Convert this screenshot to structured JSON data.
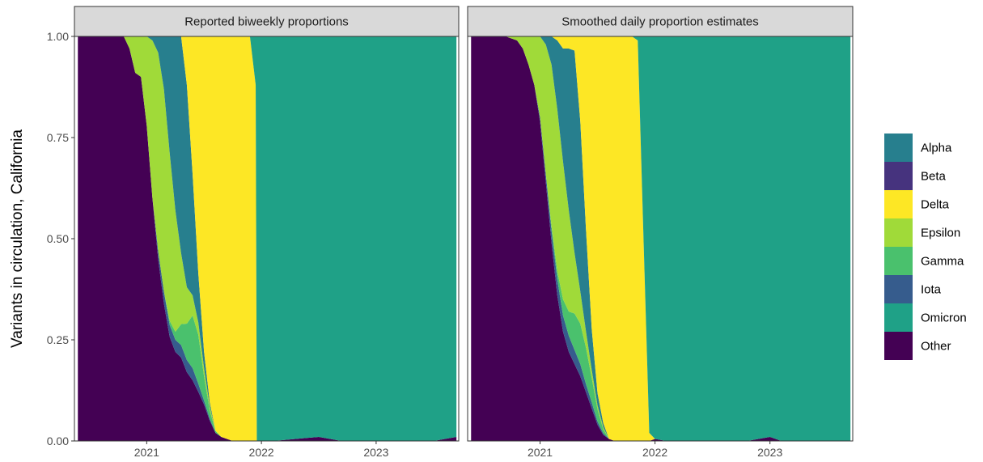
{
  "chart_data": {
    "type": "area",
    "ylabel": "Variants in circulation, California",
    "ylim": [
      0,
      1
    ],
    "y_ticks": [
      "0.00",
      "0.25",
      "0.50",
      "0.75",
      "1.00"
    ],
    "x_ticks": [
      "2021",
      "2022",
      "2023"
    ],
    "x_tick_values": [
      2021.0,
      2022.0,
      2023.0
    ],
    "xlim": [
      2020.37,
      2023.72
    ],
    "legend_position": "right",
    "legend_order": [
      "Alpha",
      "Beta",
      "Delta",
      "Epsilon",
      "Gamma",
      "Iota",
      "Omicron",
      "Other"
    ],
    "colors": {
      "Alpha": "#277f8e",
      "Beta": "#46337e",
      "Delta": "#fde725",
      "Epsilon": "#a0da39",
      "Gamma": "#4ac16d",
      "Iota": "#365c8d",
      "Omicron": "#1fa187",
      "Other": "#440154"
    },
    "stack_order": [
      "Other",
      "Beta",
      "Iota",
      "Gamma",
      "Epsilon",
      "Alpha",
      "Delta",
      "Omicron"
    ],
    "panels": [
      {
        "title": "Reported biweekly proportions",
        "x": [
          2020.4,
          2020.7,
          2020.8,
          2020.85,
          2020.9,
          2020.95,
          2021.0,
          2021.05,
          2021.1,
          2021.15,
          2021.2,
          2021.25,
          2021.3,
          2021.35,
          2021.4,
          2021.45,
          2021.5,
          2021.55,
          2021.6,
          2021.65,
          2021.7,
          2021.75,
          2021.8,
          2021.85,
          2021.9,
          2021.95,
          2021.96,
          2022.0,
          2022.1,
          2022.5,
          2022.7,
          2023.0,
          2023.5,
          2023.7
        ],
        "series": [
          {
            "name": "Other",
            "values": [
              1.0,
              1.0,
              1.0,
              0.97,
              0.91,
              0.9,
              0.78,
              0.6,
              0.45,
              0.34,
              0.26,
              0.22,
              0.2,
              0.17,
              0.15,
              0.12,
              0.09,
              0.05,
              0.02,
              0.01,
              0.005,
              0,
              0,
              0,
              0,
              0,
              0,
              0,
              0,
              0.01,
              0,
              0,
              0,
              0.01
            ]
          },
          {
            "name": "Beta",
            "values": [
              0,
              0,
              0,
              0,
              0,
              0,
              0,
              0,
              0,
              0,
              0,
              0,
              0,
              0,
              0,
              0,
              0,
              0,
              0,
              0,
              0,
              0,
              0,
              0,
              0,
              0,
              0,
              0,
              0,
              0,
              0,
              0,
              0,
              0
            ]
          },
          {
            "name": "Iota",
            "values": [
              0,
              0,
              0,
              0,
              0,
              0,
              0,
              0,
              0.02,
              0.03,
              0.03,
              0.03,
              0.03,
              0.03,
              0.03,
              0.02,
              0.01,
              0.005,
              0,
              0,
              0,
              0,
              0,
              0,
              0,
              0,
              0,
              0,
              0,
              0,
              0,
              0,
              0,
              0
            ]
          },
          {
            "name": "Gamma",
            "values": [
              0,
              0,
              0,
              0,
              0,
              0,
              0,
              0,
              0,
              0,
              0.01,
              0.02,
              0.05,
              0.09,
              0.13,
              0.12,
              0.06,
              0.02,
              0.005,
              0,
              0,
              0,
              0,
              0,
              0,
              0,
              0,
              0,
              0,
              0,
              0,
              0,
              0,
              0
            ]
          },
          {
            "name": "Epsilon",
            "values": [
              0,
              0,
              0,
              0.03,
              0.09,
              0.1,
              0.22,
              0.39,
              0.49,
              0.5,
              0.42,
              0.3,
              0.17,
              0.09,
              0.05,
              0.03,
              0.02,
              0.01,
              0,
              0,
              0,
              0,
              0,
              0,
              0,
              0,
              0,
              0,
              0,
              0,
              0,
              0,
              0,
              0
            ]
          },
          {
            "name": "Alpha",
            "values": [
              0,
              0,
              0,
              0,
              0,
              0,
              0,
              0.01,
              0.04,
              0.13,
              0.29,
              0.43,
              0.52,
              0.5,
              0.3,
              0.12,
              0.04,
              0.01,
              0,
              0,
              0,
              0,
              0,
              0,
              0,
              0,
              0,
              0,
              0,
              0,
              0,
              0,
              0,
              0
            ]
          },
          {
            "name": "Delta",
            "values": [
              0,
              0,
              0,
              0,
              0,
              0,
              0,
              0,
              0,
              0,
              0,
              0,
              0,
              0.12,
              0.34,
              0.58,
              0.78,
              0.905,
              0.97,
              0.99,
              0.995,
              1.0,
              1.0,
              1.0,
              1.0,
              0.88,
              0.0,
              0,
              0,
              0,
              0,
              0,
              0,
              0
            ]
          },
          {
            "name": "Omicron",
            "values": [
              0,
              0,
              0,
              0,
              0,
              0,
              0,
              0,
              0,
              0,
              0,
              0,
              0,
              0,
              0,
              0,
              0,
              0,
              0,
              0,
              0,
              0,
              0,
              0,
              0,
              0.12,
              1.0,
              1.0,
              1.0,
              0.99,
              1.0,
              1.0,
              1.0,
              0.99
            ]
          }
        ]
      },
      {
        "title": "Smoothed daily proportion estimates",
        "x": [
          2020.4,
          2020.7,
          2020.8,
          2020.85,
          2020.9,
          2020.95,
          2021.0,
          2021.05,
          2021.1,
          2021.15,
          2021.2,
          2021.25,
          2021.3,
          2021.35,
          2021.4,
          2021.45,
          2021.5,
          2021.55,
          2021.6,
          2021.65,
          2021.7,
          2021.75,
          2021.8,
          2021.85,
          2021.9,
          2021.95,
          2022.0,
          2022.1,
          2022.5,
          2022.8,
          2023.0,
          2023.1,
          2023.3,
          2023.7
        ],
        "series": [
          {
            "name": "Other",
            "values": [
              1.0,
              1.0,
              0.99,
              0.97,
              0.93,
              0.88,
              0.79,
              0.64,
              0.49,
              0.36,
              0.27,
              0.22,
              0.19,
              0.16,
              0.12,
              0.08,
              0.04,
              0.015,
              0.005,
              0,
              0,
              0,
              0,
              0,
              0,
              0,
              0.005,
              0,
              0,
              0,
              0.01,
              0,
              0,
              0
            ]
          },
          {
            "name": "Beta",
            "values": [
              0,
              0,
              0,
              0,
              0,
              0,
              0,
              0,
              0,
              0,
              0,
              0,
              0,
              0,
              0,
              0,
              0,
              0,
              0,
              0,
              0,
              0,
              0,
              0,
              0,
              0,
              0,
              0,
              0,
              0,
              0,
              0,
              0,
              0
            ]
          },
          {
            "name": "Iota",
            "values": [
              0,
              0,
              0,
              0,
              0,
              0,
              0.01,
              0.02,
              0.03,
              0.04,
              0.04,
              0.04,
              0.035,
              0.03,
              0.02,
              0.015,
              0.008,
              0.004,
              0,
              0,
              0,
              0,
              0,
              0,
              0,
              0,
              0,
              0,
              0,
              0,
              0,
              0,
              0,
              0
            ]
          },
          {
            "name": "Gamma",
            "values": [
              0,
              0,
              0,
              0,
              0,
              0,
              0,
              0,
              0.01,
              0.02,
              0.04,
              0.06,
              0.09,
              0.1,
              0.09,
              0.06,
              0.03,
              0.01,
              0,
              0,
              0,
              0,
              0,
              0,
              0,
              0,
              0,
              0,
              0,
              0,
              0,
              0,
              0,
              0
            ]
          },
          {
            "name": "Epsilon",
            "values": [
              0,
              0,
              0.01,
              0.03,
              0.07,
              0.12,
              0.2,
              0.32,
              0.4,
              0.4,
              0.34,
              0.25,
              0.15,
              0.08,
              0.04,
              0.02,
              0.01,
              0.005,
              0,
              0,
              0,
              0,
              0,
              0,
              0,
              0,
              0,
              0,
              0,
              0,
              0,
              0,
              0,
              0
            ]
          },
          {
            "name": "Alpha",
            "values": [
              0,
              0,
              0,
              0,
              0,
              0,
              0,
              0.02,
              0.07,
              0.17,
              0.28,
              0.4,
              0.5,
              0.42,
              0.25,
              0.1,
              0.03,
              0.01,
              0,
              0,
              0,
              0,
              0,
              0,
              0,
              0,
              0,
              0,
              0,
              0,
              0,
              0,
              0,
              0
            ]
          },
          {
            "name": "Delta",
            "values": [
              0,
              0,
              0,
              0,
              0,
              0,
              0,
              0,
              0,
              0.01,
              0.03,
              0.03,
              0.035,
              0.21,
              0.48,
              0.725,
              0.882,
              0.956,
              0.995,
              1.0,
              1.0,
              1.0,
              1.0,
              0.99,
              0.5,
              0.02,
              0,
              0,
              0,
              0,
              0,
              0,
              0,
              0
            ]
          },
          {
            "name": "Omicron",
            "values": [
              0,
              0,
              0,
              0,
              0,
              0,
              0,
              0,
              0,
              0,
              0,
              0,
              0,
              0,
              0,
              0,
              0,
              0,
              0,
              0,
              0,
              0,
              0,
              0.01,
              0.5,
              0.98,
              0.995,
              1.0,
              1.0,
              1.0,
              0.99,
              1.0,
              1.0,
              1.0
            ]
          }
        ]
      }
    ]
  }
}
